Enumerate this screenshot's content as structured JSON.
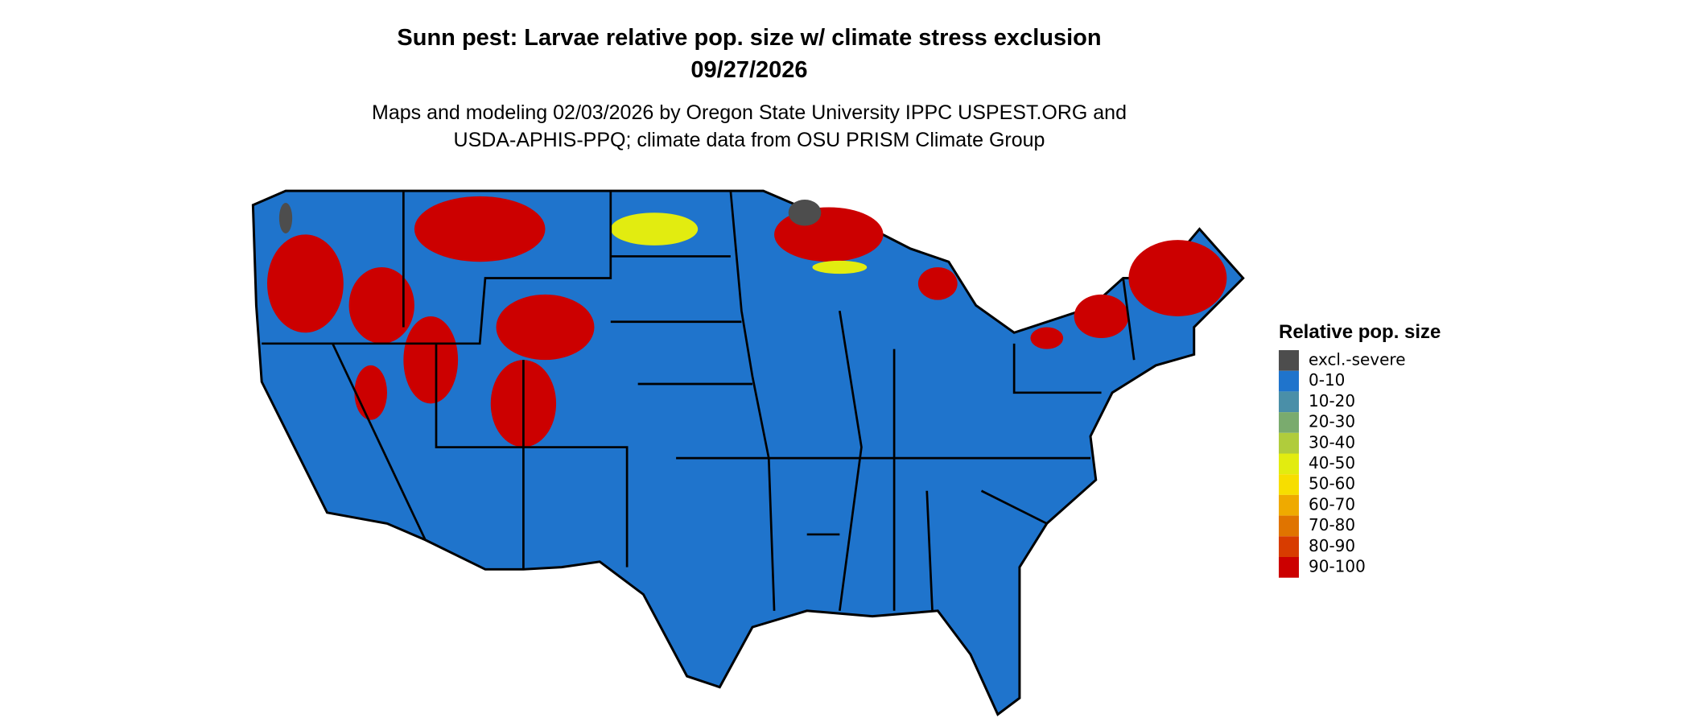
{
  "title": "Sunn pest: Larvae relative pop. size w/ climate stress exclusion",
  "date": "09/27/2026",
  "subtitle": [
    "Maps and modeling 02/03/2026 by Oregon State University IPPC USPEST.ORG and",
    "USDA-APHIS-PPQ; climate data from OSU PRISM Climate Group"
  ],
  "legend": {
    "title": "Relative pop. size",
    "items": [
      {
        "label": "excl.-severe",
        "color": "#4d4d4d"
      },
      {
        "label": "0-10",
        "color": "#1f74cc"
      },
      {
        "label": "10-20",
        "color": "#4a8fa8"
      },
      {
        "label": "20-30",
        "color": "#7aab6e"
      },
      {
        "label": "30-40",
        "color": "#b0cc3c"
      },
      {
        "label": "40-50",
        "color": "#e2ec10"
      },
      {
        "label": "50-60",
        "color": "#f7de00"
      },
      {
        "label": "60-70",
        "color": "#efaa00"
      },
      {
        "label": "70-80",
        "color": "#e07400"
      },
      {
        "label": "80-90",
        "color": "#d83c00"
      },
      {
        "label": "90-100",
        "color": "#cc0000"
      }
    ]
  }
}
